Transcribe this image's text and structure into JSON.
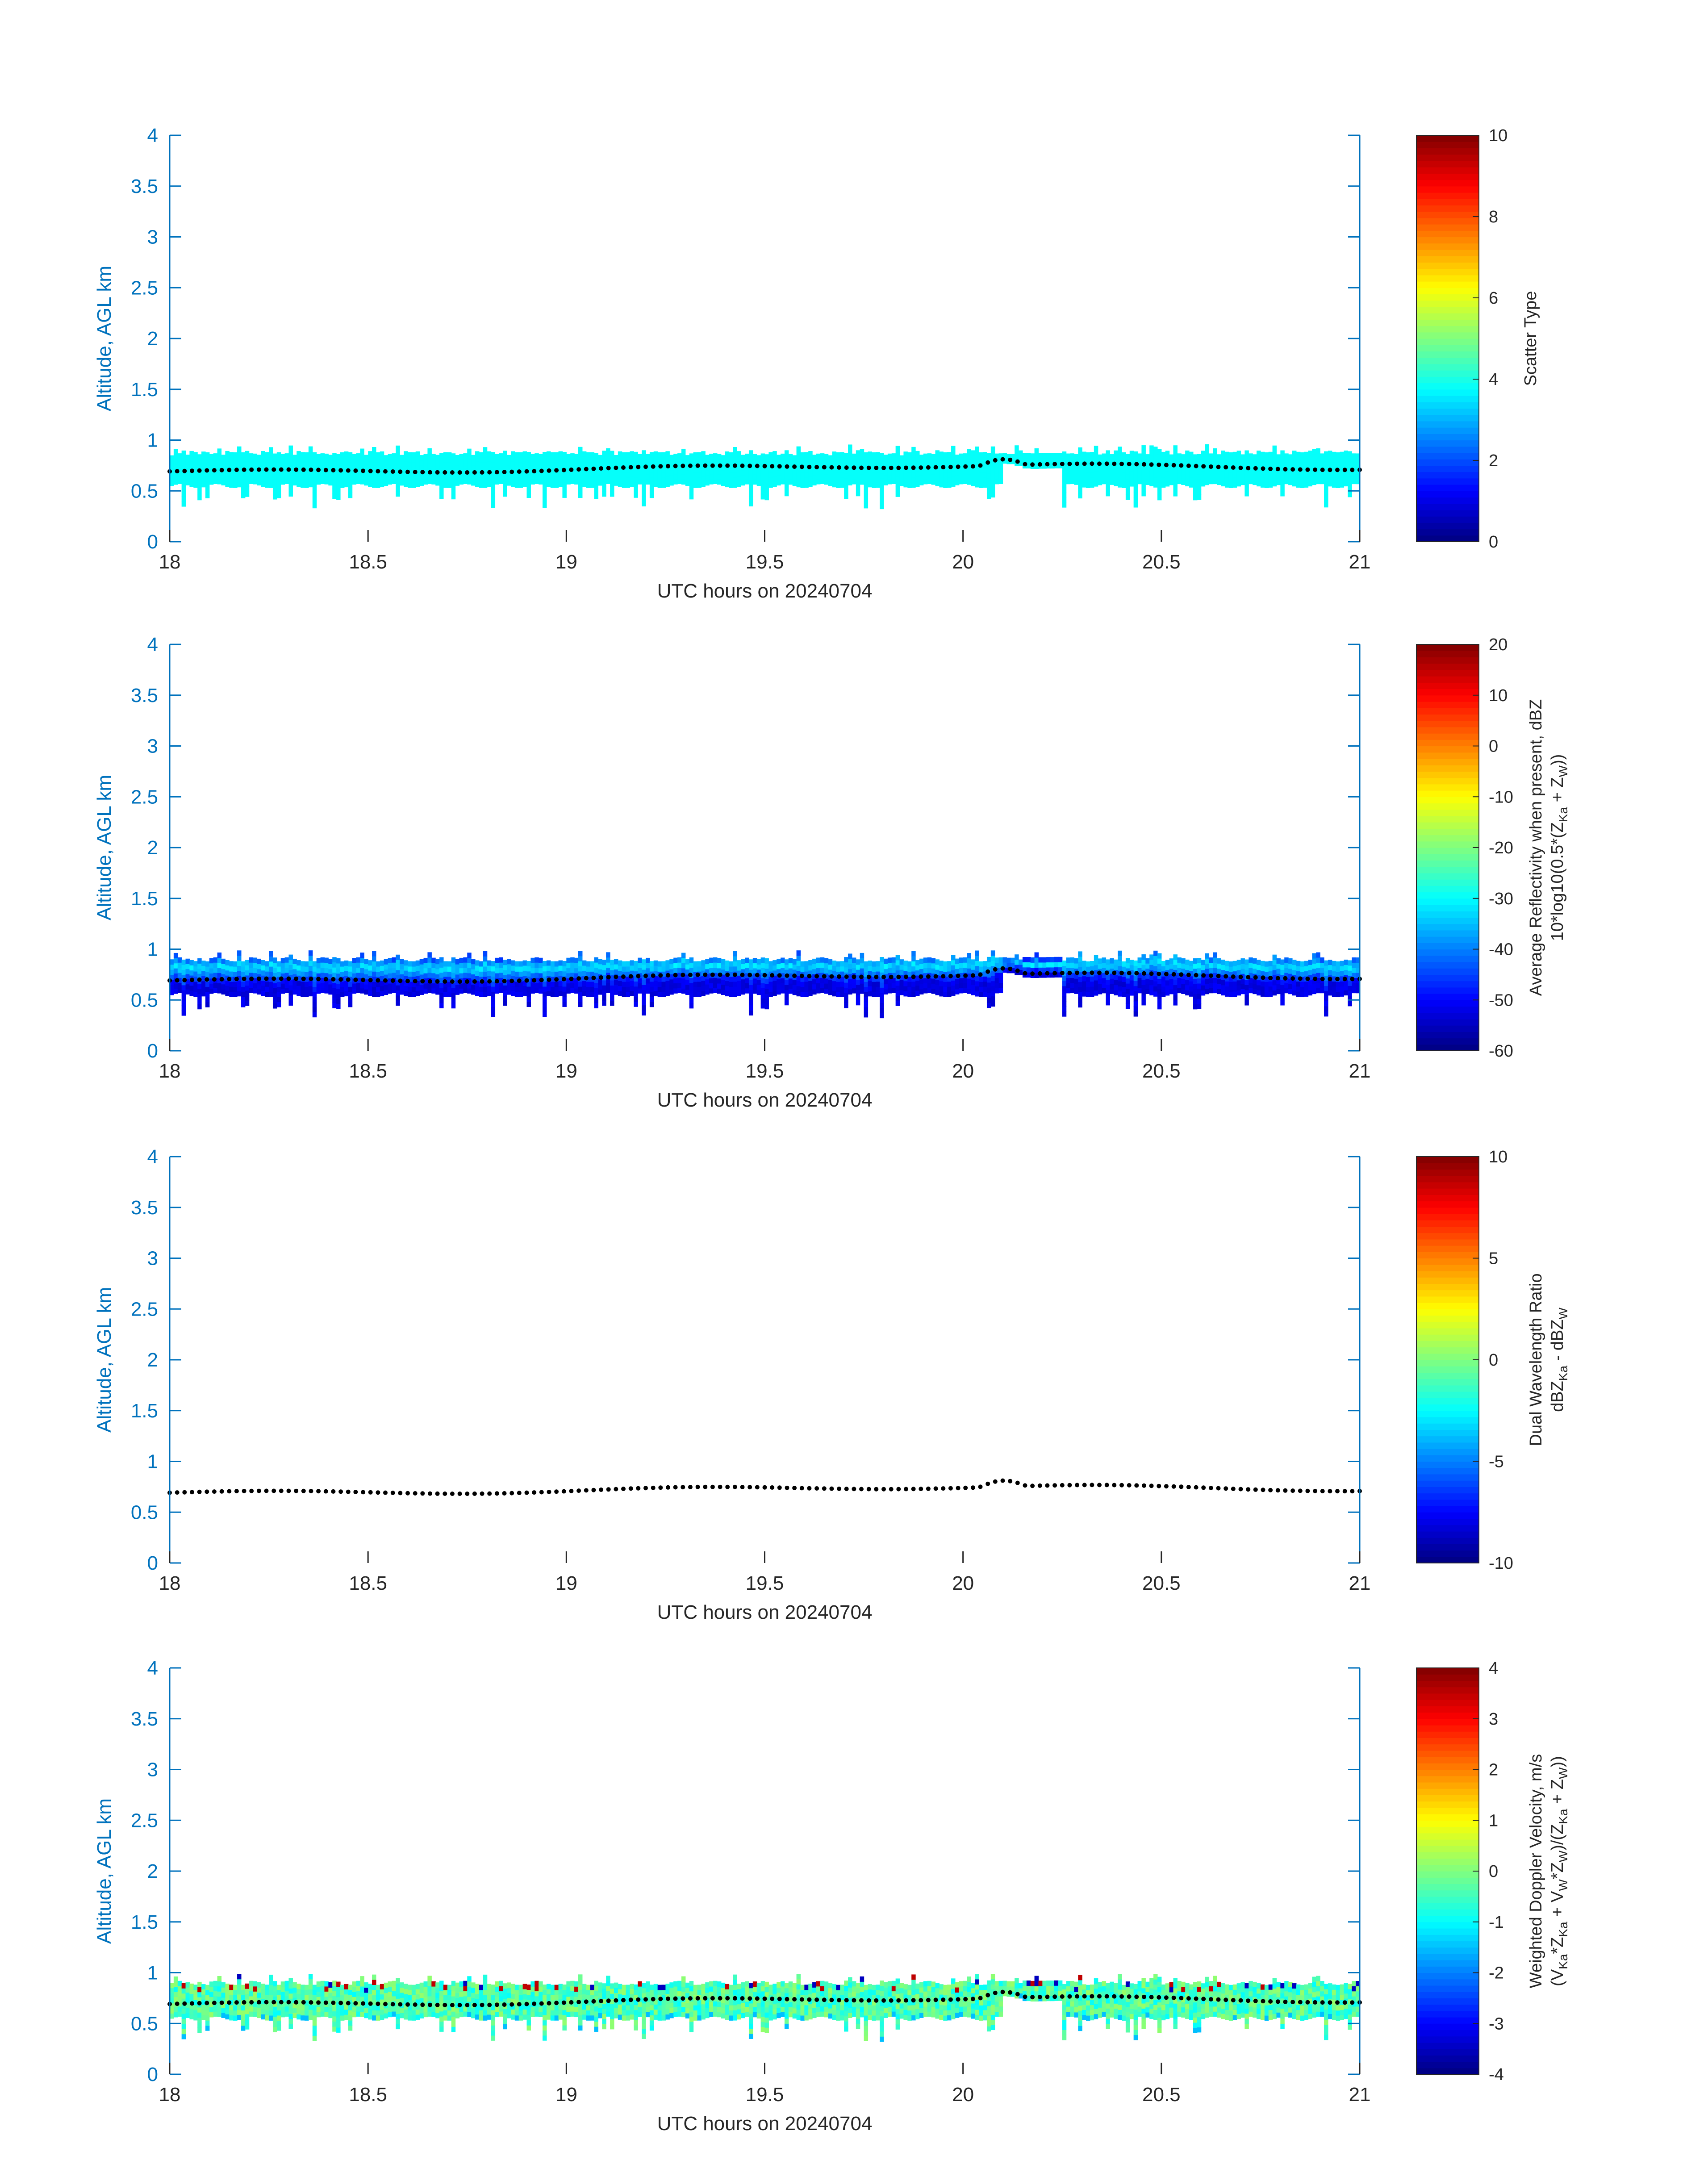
{
  "chart_data": [
    {
      "type": "heatmap",
      "title": "",
      "xlabel": "UTC hours on 20240704",
      "ylabel": "Altitude, AGL km",
      "xlim": [
        18,
        21
      ],
      "ylim": [
        0,
        4
      ],
      "xticks": [
        "18",
        "18.5",
        "19",
        "19.5",
        "20",
        "20.5",
        "21"
      ],
      "yticks": [
        "0",
        "0.5",
        "1",
        "1.5",
        "2",
        "2.5",
        "3",
        "3.5",
        "4"
      ],
      "colorbar": {
        "label_lines": [
          "Scatter Type"
        ],
        "range": [
          0,
          10
        ],
        "ticks": [
          "0",
          "2",
          "4",
          "6",
          "8",
          "10"
        ],
        "colormap": "jet"
      },
      "layer": {
        "top_km": 0.85,
        "bottom_km": 0.55,
        "dominant_value": 3.8,
        "has_field": true
      },
      "cloud_base_km": 0.72,
      "grid": false
    },
    {
      "type": "heatmap",
      "title": "",
      "xlabel": "UTC hours on 20240704",
      "ylabel": "Altitude, AGL km",
      "xlim": [
        18,
        21
      ],
      "ylim": [
        0,
        4
      ],
      "xticks": [
        "18",
        "18.5",
        "19",
        "19.5",
        "20",
        "20.5",
        "21"
      ],
      "yticks": [
        "0",
        "0.5",
        "1",
        "1.5",
        "2",
        "2.5",
        "3",
        "3.5",
        "4"
      ],
      "colorbar": {
        "label_lines": [
          "Average Reflectivity when present, dBZ",
          "10*log10(0.5*(Z",
          "Ka",
          " + Z",
          "W",
          "))"
        ],
        "range": [
          -60,
          20
        ],
        "ticks": [
          "-60",
          "-50",
          "-40",
          "-30",
          "-20",
          "-10",
          "0",
          "10",
          "20"
        ],
        "colormap": "jet"
      },
      "layer": {
        "top_km": 0.88,
        "bottom_km": 0.55,
        "core_value": -32,
        "edge_value": -52,
        "has_field": true
      },
      "cloud_base_km": 0.72,
      "grid": false
    },
    {
      "type": "heatmap",
      "title": "",
      "xlabel": "UTC hours on 20240704",
      "ylabel": "Altitude, AGL km",
      "xlim": [
        18,
        21
      ],
      "ylim": [
        0,
        4
      ],
      "xticks": [
        "18",
        "18.5",
        "19",
        "19.5",
        "20",
        "20.5",
        "21"
      ],
      "yticks": [
        "0",
        "0.5",
        "1",
        "1.5",
        "2",
        "2.5",
        "3",
        "3.5",
        "4"
      ],
      "colorbar": {
        "label_lines": [
          "Dual Wavelength Ratio",
          "dBZ",
          "Ka",
          " - dBZ",
          "W"
        ],
        "range": [
          -10,
          10
        ],
        "ticks": [
          "-10",
          "-5",
          "0",
          "5",
          "10"
        ],
        "colormap": "jet"
      },
      "layer": {
        "has_field": false
      },
      "cloud_base_km": 0.72,
      "grid": false
    },
    {
      "type": "heatmap",
      "title": "",
      "xlabel": "UTC hours on 20240704",
      "ylabel": "Altitude, AGL km",
      "xlim": [
        18,
        21
      ],
      "ylim": [
        0,
        4
      ],
      "xticks": [
        "18",
        "18.5",
        "19",
        "19.5",
        "20",
        "20.5",
        "21"
      ],
      "yticks": [
        "0",
        "0.5",
        "1",
        "1.5",
        "2",
        "2.5",
        "3",
        "3.5",
        "4"
      ],
      "colorbar": {
        "label_lines": [
          "Weighted Doppler Velocity, m/s",
          "(V",
          "Ka",
          "*Z",
          "Ka",
          " + V",
          "W",
          "*Z",
          "W",
          ")/(Z",
          "Ka",
          " + Z",
          "W",
          "))"
        ],
        "range": [
          -4,
          4
        ],
        "ticks": [
          "-4",
          "-3",
          "-2",
          "-1",
          "0",
          "1",
          "2",
          "3",
          "4"
        ],
        "colormap": "jet"
      },
      "layer": {
        "top_km": 0.88,
        "bottom_km": 0.55,
        "dominant_value": -0.4,
        "has_field": true
      },
      "cloud_base_km": 0.72,
      "grid": false
    }
  ],
  "colors": {
    "axis": "#0072BD",
    "text": "#262626",
    "cloud_base_marker": "#000000"
  }
}
